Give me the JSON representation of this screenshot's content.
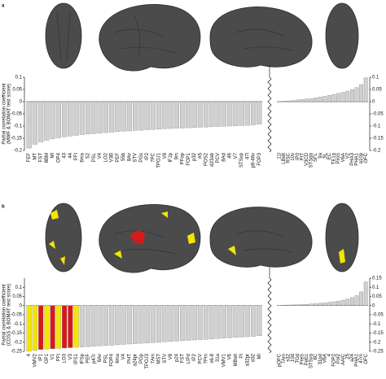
{
  "chart_data": [
    {
      "type": "bar",
      "panel_label": "a",
      "ylabel": [
        "Partial correlation coefficient",
        "(MWF & BOMAT test score)"
      ],
      "categories": [
        "FEF",
        "MT",
        "FST",
        "8BM",
        "MI",
        "OP4",
        "43",
        "44",
        "PFt",
        "6ma",
        "S2",
        "PSL",
        "V4",
        "LO2",
        "V3B",
        "PEF",
        "55b",
        "8Av",
        "STV",
        "PGs",
        "IP2",
        "7PC",
        "TPOJ1",
        "V8",
        "IFJp",
        "9m",
        "PFop",
        "FOP1",
        "p32",
        "A5",
        "POS2",
        "d23ab",
        "PCV",
        "8Ad",
        "46",
        "V7",
        "STSvp",
        "47l",
        "p9-46v",
        "FOP3"
      ],
      "values": [
        -0.19,
        -0.175,
        -0.165,
        -0.158,
        -0.152,
        -0.148,
        -0.144,
        -0.141,
        -0.138,
        -0.135,
        -0.133,
        -0.131,
        -0.129,
        -0.127,
        -0.125,
        -0.123,
        -0.121,
        -0.12,
        -0.118,
        -0.117,
        -0.115,
        -0.114,
        -0.113,
        -0.111,
        -0.11,
        -0.109,
        -0.108,
        -0.107,
        -0.106,
        -0.105,
        -0.104,
        -0.103,
        -0.102,
        -0.101,
        -0.1,
        -0.099,
        -0.098,
        -0.097,
        -0.095,
        -0.092
      ],
      "color": "#d0d0d0",
      "ylim": [
        -0.2,
        0.1
      ],
      "yticks": [
        0.1,
        0.05,
        0,
        -0.05,
        -0.1,
        -0.15,
        -0.2
      ],
      "axis_side": "left"
    },
    {
      "type": "bar",
      "categories": [
        "11l",
        "LBelt",
        "RSC",
        "10v",
        "IP0",
        "PIT",
        "V3CD",
        "STSda",
        "SFL",
        "9a",
        "5L",
        "EC",
        "TE1a",
        "ProS",
        "V6A",
        "V2",
        "PHA3",
        "PHA1",
        "a10p",
        "OFC"
      ],
      "values": [
        0.001,
        0.002,
        0.003,
        0.005,
        0.007,
        0.009,
        0.011,
        0.013,
        0.016,
        0.019,
        0.022,
        0.026,
        0.03,
        0.034,
        0.038,
        0.043,
        0.05,
        0.058,
        0.07,
        0.098
      ],
      "color": "#d0d0d0",
      "ylim": [
        -0.2,
        0.1
      ],
      "yticks": [
        0.1,
        0.05,
        0,
        -0.05,
        -0.1,
        -0.15,
        -0.2
      ],
      "axis_side": "right"
    },
    {
      "type": "bar",
      "panel_label": "b",
      "ylabel": [
        "Partial correlation coefficient",
        "(CDSS & BOMAT test score)"
      ],
      "categories": [
        "4",
        "VMV2",
        "IP1",
        "OP1",
        "V1",
        "PFt",
        "LO3",
        "V3",
        "IPS1",
        "IFSp",
        "PEF",
        "p47r",
        "8Av",
        "PSL",
        "FOP4",
        "6ma",
        "V4",
        "PHT",
        "a24pr",
        "PGp",
        "TPOJ3",
        "7Am",
        "MST",
        "STV",
        "V8",
        "p24",
        "FST",
        "LIPd",
        "IP2",
        "PCV",
        "7Pm",
        "s6-8",
        "31a",
        "VMV1",
        "V6",
        "MBelt",
        "PI",
        "a32pr",
        "d32",
        "MI"
      ],
      "values": [
        -0.25,
        -0.245,
        -0.24,
        -0.238,
        -0.236,
        -0.234,
        -0.232,
        -0.23,
        -0.228,
        -0.226,
        -0.224,
        -0.222,
        -0.22,
        -0.218,
        -0.216,
        -0.214,
        -0.212,
        -0.21,
        -0.208,
        -0.206,
        -0.204,
        -0.202,
        -0.2,
        -0.198,
        -0.196,
        -0.194,
        -0.192,
        -0.19,
        -0.188,
        -0.186,
        -0.184,
        -0.182,
        -0.18,
        -0.178,
        -0.176,
        -0.174,
        -0.172,
        -0.17,
        -0.168,
        -0.165
      ],
      "colors": [
        "#f3e600",
        "#f3e600",
        "#d7191c",
        "#f3e600",
        "#d7191c",
        "#f3e600",
        "#d7191c",
        "#d7191c",
        "#f3e600",
        "#d0d0d0",
        "#d0d0d0",
        "#d0d0d0",
        "#d0d0d0",
        "#d0d0d0",
        "#d0d0d0",
        "#d0d0d0",
        "#d0d0d0",
        "#d0d0d0",
        "#d0d0d0",
        "#d0d0d0",
        "#d0d0d0",
        "#d0d0d0",
        "#d0d0d0",
        "#d0d0d0",
        "#d0d0d0",
        "#d0d0d0",
        "#d0d0d0",
        "#d0d0d0",
        "#d0d0d0",
        "#d0d0d0",
        "#d0d0d0",
        "#d0d0d0",
        "#d0d0d0",
        "#d0d0d0",
        "#d0d0d0",
        "#d0d0d0",
        "#d0d0d0",
        "#d0d0d0",
        "#d0d0d0",
        "#d0d0d0"
      ],
      "ylim": [
        -0.25,
        0.15
      ],
      "yticks": [
        0.1,
        0.05,
        0,
        -0.05,
        -0.1,
        -0.15,
        -0.2,
        -0.25
      ],
      "axis_side": "left"
    },
    {
      "type": "bar",
      "categories": [
        "pOFC",
        "7Am",
        "s32",
        "10d",
        "TGd",
        "PreS",
        "PeEc",
        "STSva",
        "8C",
        "31pd",
        "V6A",
        "4",
        "FOP2",
        "PoI2",
        "AAIC",
        "25",
        "a24",
        "PHA1",
        "47m",
        "OFC"
      ],
      "values": [
        0.001,
        0.002,
        0.003,
        0.004,
        0.005,
        0.006,
        0.007,
        0.009,
        0.011,
        0.013,
        0.015,
        0.018,
        0.021,
        0.025,
        0.03,
        0.036,
        0.044,
        0.055,
        0.075,
        0.13
      ],
      "color": "#d0d0d0",
      "ylim": [
        -0.25,
        0.15
      ],
      "yticks": [
        0.15,
        0.1,
        0.05,
        0,
        -0.05,
        -0.1,
        -0.15,
        -0.2,
        -0.25
      ],
      "axis_side": "right"
    }
  ]
}
